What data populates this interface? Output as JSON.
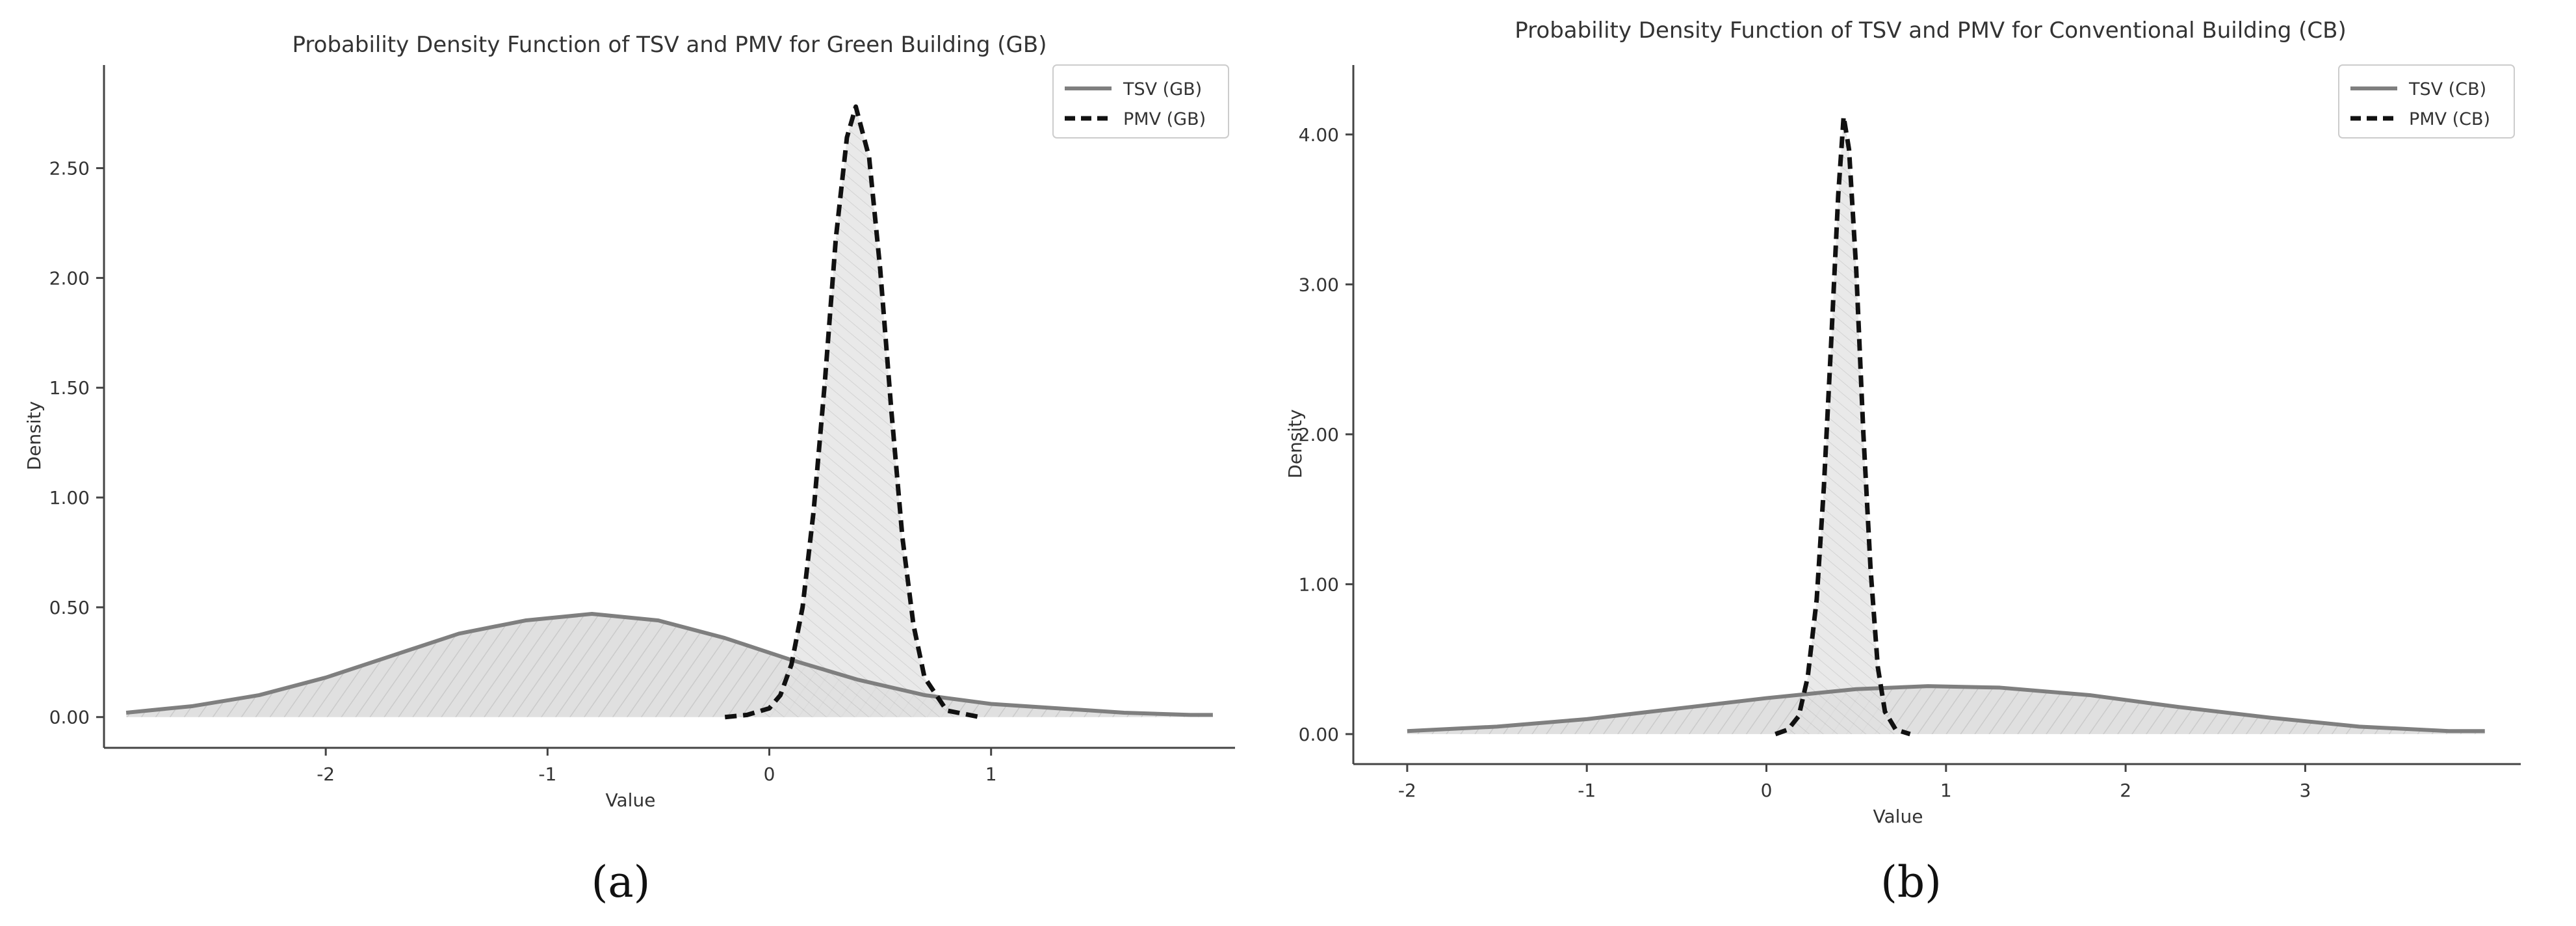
{
  "chart_data": [
    {
      "panel_label": "(a)",
      "type": "area",
      "title": "Probability Density Function of TSV and PMV for Green Building (GB)",
      "xlabel": "Value",
      "ylabel": "Density",
      "xlim": [
        -3.0,
        2.1
      ],
      "ylim": [
        -0.14,
        2.94
      ],
      "xticks": [
        -2,
        -1,
        0,
        1
      ],
      "yticks": [
        0.0,
        0.5,
        1.0,
        1.5,
        2.0,
        2.5
      ],
      "ytick_labels": [
        "0.00",
        "0.50",
        "1.00",
        "1.50",
        "2.00",
        "2.50"
      ],
      "legend": {
        "position": "top-right",
        "entries": [
          "TSV (GB)",
          "PMV (GB)"
        ]
      },
      "series": [
        {
          "name": "TSV (GB)",
          "style": "solid",
          "color": "#7f7f7f",
          "x": [
            -2.9,
            -2.6,
            -2.3,
            -2.0,
            -1.7,
            -1.4,
            -1.1,
            -0.8,
            -0.5,
            -0.2,
            0.1,
            0.4,
            0.7,
            1.0,
            1.3,
            1.6,
            1.9,
            2.0
          ],
          "y": [
            0.02,
            0.05,
            0.1,
            0.18,
            0.28,
            0.38,
            0.44,
            0.47,
            0.44,
            0.36,
            0.26,
            0.17,
            0.1,
            0.06,
            0.04,
            0.02,
            0.01,
            0.01
          ]
        },
        {
          "name": "PMV (GB)",
          "style": "dashed",
          "color": "#111111",
          "x": [
            -0.2,
            -0.1,
            0.0,
            0.05,
            0.1,
            0.15,
            0.2,
            0.25,
            0.3,
            0.35,
            0.39,
            0.45,
            0.5,
            0.55,
            0.6,
            0.65,
            0.7,
            0.8,
            0.95
          ],
          "y": [
            0.0,
            0.01,
            0.04,
            0.1,
            0.24,
            0.5,
            0.94,
            1.52,
            2.18,
            2.64,
            2.78,
            2.55,
            2.04,
            1.4,
            0.82,
            0.42,
            0.18,
            0.03,
            0.0
          ]
        }
      ]
    },
    {
      "panel_label": "(b)",
      "type": "area",
      "title": "Probability Density Function of TSV and PMV for Conventional Building (CB)",
      "xlabel": "Value",
      "ylabel": "Density",
      "xlim": [
        -2.3,
        4.2
      ],
      "ylim": [
        -0.2,
        4.42
      ],
      "xticks": [
        -2,
        -1,
        0,
        1,
        2,
        3
      ],
      "yticks": [
        0.0,
        1.0,
        2.0,
        3.0,
        4.0
      ],
      "ytick_labels": [
        "0.00",
        "1.00",
        "2.00",
        "3.00",
        "4.00"
      ],
      "legend": {
        "position": "top-right",
        "entries": [
          "TSV (CB)",
          "PMV (CB)"
        ]
      },
      "series": [
        {
          "name": "TSV (CB)",
          "style": "solid",
          "color": "#7f7f7f",
          "x": [
            -2.0,
            -1.5,
            -1.0,
            -0.5,
            0.0,
            0.5,
            0.9,
            1.3,
            1.8,
            2.3,
            2.8,
            3.3,
            3.8,
            4.0
          ],
          "y": [
            0.02,
            0.05,
            0.1,
            0.17,
            0.24,
            0.3,
            0.32,
            0.31,
            0.26,
            0.18,
            0.11,
            0.05,
            0.02,
            0.02
          ]
        },
        {
          "name": "PMV (CB)",
          "style": "dashed",
          "color": "#111111",
          "x": [
            0.05,
            0.12,
            0.18,
            0.23,
            0.28,
            0.32,
            0.36,
            0.4,
            0.43,
            0.46,
            0.5,
            0.54,
            0.58,
            0.62,
            0.66,
            0.72,
            0.8
          ],
          "y": [
            0.0,
            0.03,
            0.12,
            0.38,
            0.9,
            1.65,
            2.6,
            3.6,
            4.12,
            3.9,
            3.1,
            2.0,
            1.1,
            0.45,
            0.15,
            0.03,
            0.0
          ]
        }
      ]
    }
  ]
}
